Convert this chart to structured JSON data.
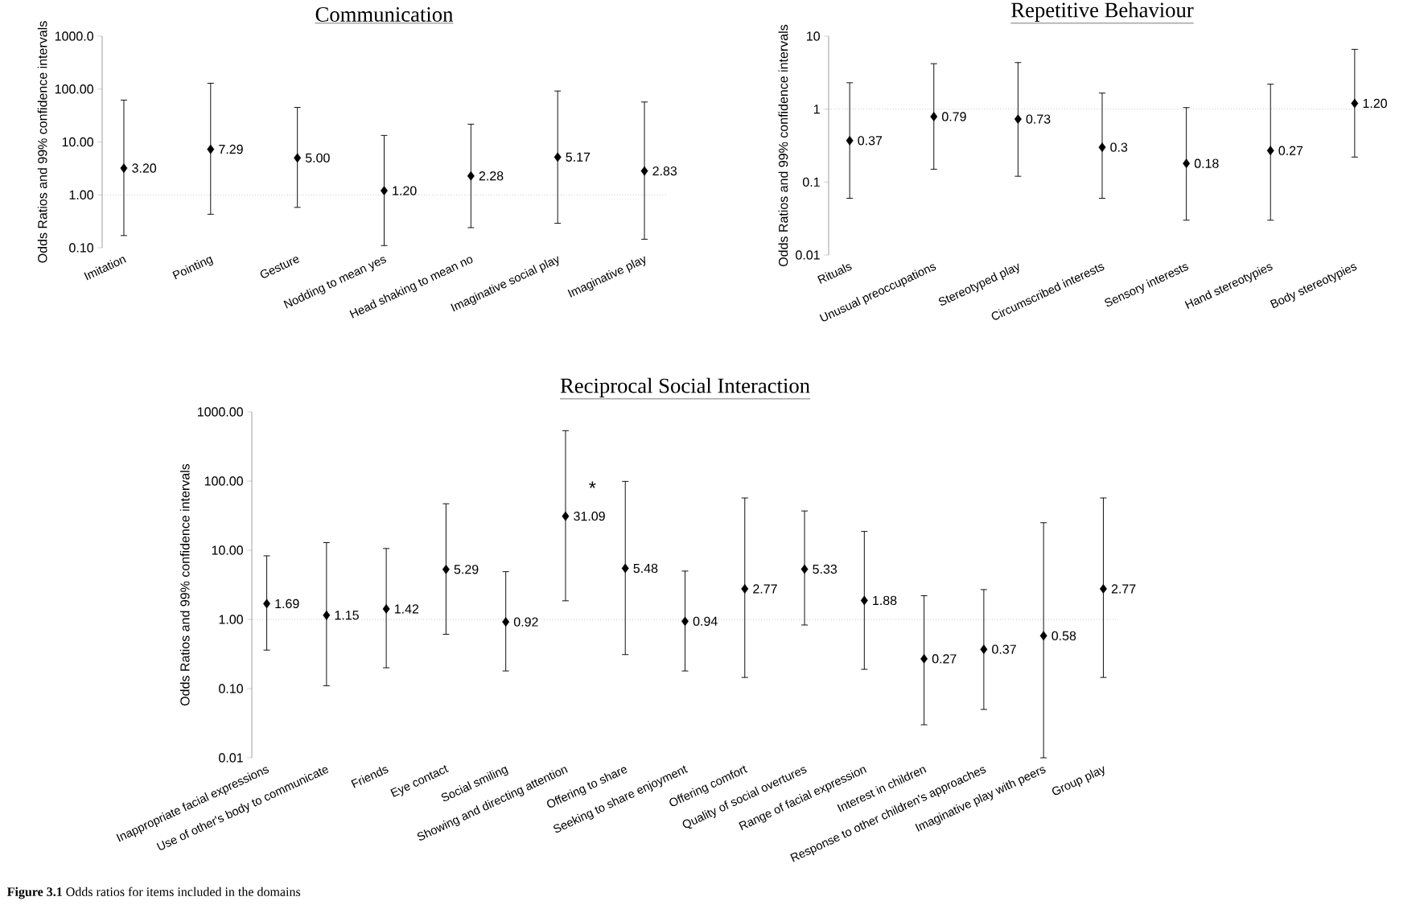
{
  "chart_data": [
    {
      "type": "scatter",
      "title": "Communication",
      "ylabel": "Odds Ratios and 99% confidence intervals",
      "marker": "diamond",
      "categories": [
        "Imitation",
        "Pointing",
        "Gesture",
        "Nodding to mean yes",
        "Head shaking to mean no",
        "Imaginative social play",
        "Imaginative play"
      ],
      "values": [
        3.2,
        7.29,
        5.0,
        1.2,
        2.28,
        5.17,
        2.83
      ],
      "value_labels": [
        "3.20",
        "7.29",
        "5.00",
        "1.20",
        "2.28",
        "5.17",
        "2.83"
      ],
      "errors": [
        [
          0.17,
          62
        ],
        [
          0.43,
          129
        ],
        [
          0.58,
          45
        ],
        [
          0.11,
          13.3
        ],
        [
          0.24,
          21.7
        ],
        [
          0.29,
          92
        ],
        [
          0.145,
          57
        ]
      ],
      "color": "#000000",
      "log": "y",
      "ylim": [
        0.1,
        1000
      ],
      "yticks": [
        {
          "value": 0.1,
          "label": "0.10"
        },
        {
          "value": 1,
          "label": "1.00"
        },
        {
          "value": 10,
          "label": "10.00"
        },
        {
          "value": 100,
          "label": "100.00"
        },
        {
          "value": 1000,
          "label": "1000.0"
        }
      ],
      "ref_lines": [
        {
          "axis": "y",
          "value": 1,
          "line_style": "dotted",
          "color": "#808080"
        }
      ]
    },
    {
      "type": "scatter",
      "title": "Repetitive Behaviour",
      "ylabel": "Odds Ratios and 99% confidence intervals",
      "marker": "diamond",
      "categories": [
        "Rituals",
        "Unusual preoccupations",
        "Stereotyped play",
        "Circumscribed interests",
        "Sensory interests",
        "Hand stereotypies",
        "Body stereotypies"
      ],
      "values": [
        0.37,
        0.79,
        0.73,
        0.3,
        0.18,
        0.27,
        1.2
      ],
      "value_labels": [
        "0.37",
        "0.79",
        "0.73",
        "0.3",
        "0.18",
        "0.27",
        "1.20"
      ],
      "errors": [
        [
          0.06,
          2.3
        ],
        [
          0.15,
          4.2
        ],
        [
          0.12,
          4.35
        ],
        [
          0.06,
          1.66
        ],
        [
          0.03,
          1.05
        ],
        [
          0.03,
          2.2
        ],
        [
          0.22,
          6.6
        ]
      ],
      "color": "#000000",
      "log": "y",
      "ylim": [
        0.01,
        10
      ],
      "yticks": [
        0.01,
        0.1,
        1,
        10
      ],
      "ref_lines": [
        {
          "axis": "y",
          "value": 1,
          "line_style": "dotted",
          "color": "#808080"
        }
      ]
    },
    {
      "type": "scatter",
      "title": "Reciprocal Social Interaction",
      "ylabel": "Odds Ratios and 99% confidence intervals",
      "marker": "diamond",
      "categories": [
        "Inappropriate facial expressions",
        "Use of other's body to communicate",
        "Friends",
        "Eye contact",
        "Social smiling",
        "Showing and directing attention",
        "Offering to share",
        "Seeking to share enjoyment",
        "Offering comfort",
        "Quality of social overtures",
        "Range of facial expression",
        "Interest in children",
        "Response to other children's approaches",
        "Imaginative play with peers",
        "Group play"
      ],
      "values": [
        1.69,
        1.15,
        1.42,
        5.29,
        0.92,
        31.09,
        5.48,
        0.94,
        2.77,
        5.33,
        1.88,
        0.27,
        0.37,
        0.58,
        2.77
      ],
      "value_labels": [
        "1.69",
        "1.15",
        "1.42",
        "5.29",
        "0.92",
        "31.09",
        "5.48",
        "0.94",
        "2.77",
        "5.33",
        "1.88",
        "0.27",
        "0.37",
        "0.58",
        "2.77"
      ],
      "errors": [
        [
          0.36,
          8.3
        ],
        [
          0.11,
          12.9
        ],
        [
          0.2,
          10.6
        ],
        [
          0.61,
          47
        ],
        [
          0.18,
          4.9
        ],
        [
          1.86,
          535
        ],
        [
          0.31,
          99
        ],
        [
          0.18,
          5.0
        ],
        [
          0.145,
          57
        ],
        [
          0.83,
          37
        ],
        [
          0.19,
          18.7
        ],
        [
          0.03,
          2.2
        ],
        [
          0.05,
          2.7
        ],
        [
          0.01,
          25
        ],
        [
          0.145,
          57
        ]
      ],
      "color": "#000000",
      "log": "y",
      "ylim": [
        0.01,
        1000
      ],
      "yticks": [
        {
          "value": 0.01,
          "label": "0.01"
        },
        {
          "value": 0.1,
          "label": "0.10"
        },
        {
          "value": 1,
          "label": "1.00"
        },
        {
          "value": 10,
          "label": "10.00"
        },
        {
          "value": 100,
          "label": "100.00"
        },
        {
          "value": 1000,
          "label": "1000.00"
        }
      ],
      "ref_lines": [
        {
          "axis": "y",
          "value": 1,
          "line_style": "dotted",
          "color": "#808080"
        }
      ],
      "annotations": [
        {
          "text": "*",
          "x": "Showing and directing attention",
          "y": 56
        },
        "**Figure 3.1** Odds ratios for items included in the domains"
      ]
    }
  ]
}
